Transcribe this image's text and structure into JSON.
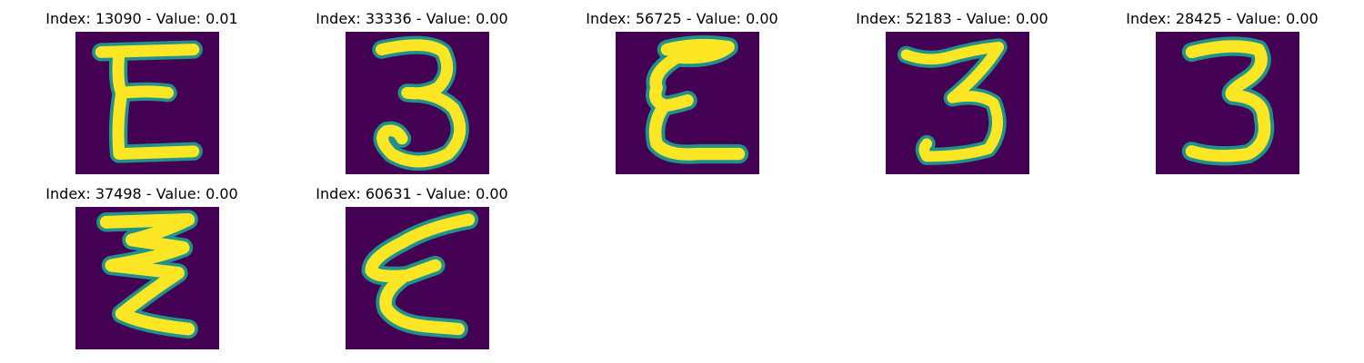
{
  "colors": {
    "background": "#440154",
    "stroke_core": "#fde725",
    "stroke_edge": "#21918c",
    "stroke_mid": "#7ad151",
    "title_text": "#000000"
  },
  "panels": [
    {
      "title": "Index: 13090 - Value: 0.01",
      "depicts": "handwritten character E"
    },
    {
      "title": "Index: 33336 - Value: 0.00",
      "depicts": "handwritten digit 3"
    },
    {
      "title": "Index: 56725 - Value: 0.00",
      "depicts": "handwritten character E"
    },
    {
      "title": "Index: 52183 - Value: 0.00",
      "depicts": "handwritten digit 3"
    },
    {
      "title": "Index: 28425 - Value: 0.00",
      "depicts": "handwritten digit 3"
    },
    {
      "title": "Index: 37498 - Value: 0.00",
      "depicts": "handwritten character Ξ"
    },
    {
      "title": "Index: 60631 - Value: 0.00",
      "depicts": "handwritten character E"
    }
  ]
}
